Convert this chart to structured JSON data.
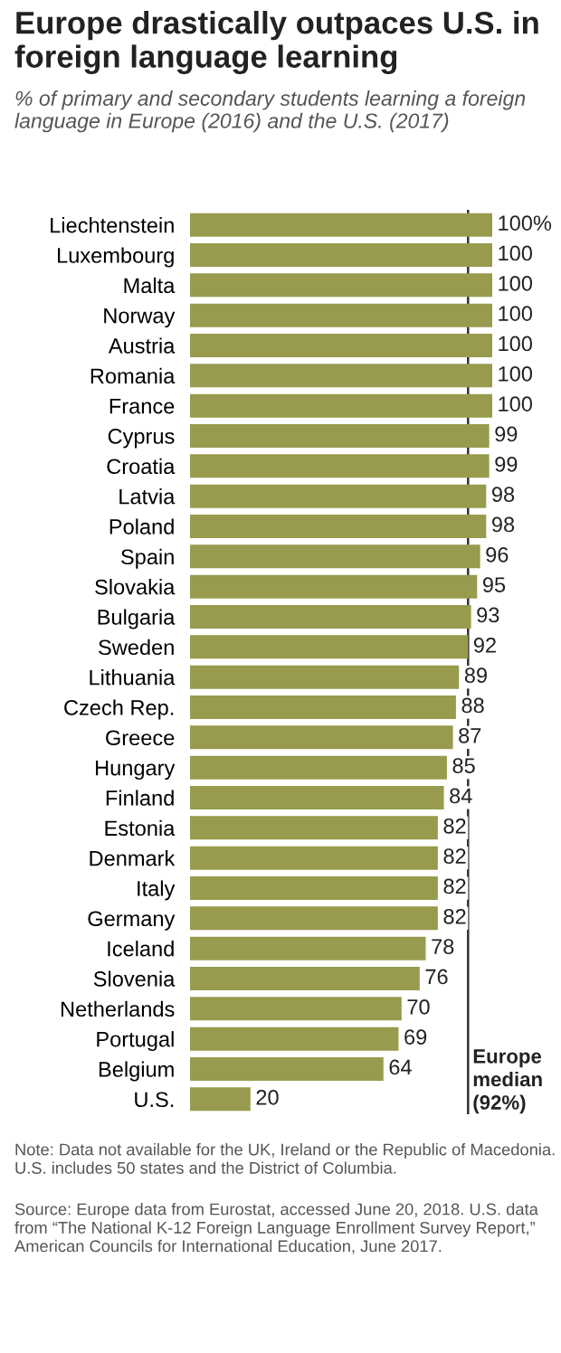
{
  "chart_data": {
    "type": "bar",
    "orientation": "horizontal",
    "title": "Europe drastically outpaces U.S. in foreign language learning",
    "subtitle": "% of primary and secondary students learning a foreign language in Europe (2016) and the U.S. (2017)",
    "categories": [
      "Liechtenstein",
      "Luxembourg",
      "Malta",
      "Norway",
      "Austria",
      "Romania",
      "France",
      "Cyprus",
      "Croatia",
      "Latvia",
      "Poland",
      "Spain",
      "Slovakia",
      "Bulgaria",
      "Sweden",
      "Lithuania",
      "Czech Rep.",
      "Greece",
      "Hungary",
      "Finland",
      "Estonia",
      "Denmark",
      "Italy",
      "Germany",
      "Iceland",
      "Slovenia",
      "Netherlands",
      "Portugal",
      "Belgium",
      "U.S."
    ],
    "values": [
      100,
      100,
      100,
      100,
      100,
      100,
      100,
      99,
      99,
      98,
      98,
      96,
      95,
      93,
      92,
      89,
      88,
      87,
      85,
      84,
      82,
      82,
      82,
      82,
      78,
      76,
      70,
      69,
      64,
      20
    ],
    "value_labels": [
      "100%",
      "100",
      "100",
      "100",
      "100",
      "100",
      "100",
      "99",
      "99",
      "98",
      "98",
      "96",
      "95",
      "93",
      "92",
      "89",
      "88",
      "87",
      "85",
      "84",
      "82",
      "82",
      "82",
      "82",
      "78",
      "76",
      "70",
      "69",
      "64",
      "20"
    ],
    "color": "#989b4e",
    "ref_lines": [
      {
        "axis": "x",
        "value": 92,
        "label": "Europe median (92%)",
        "color": "#333333",
        "line_style": "solid"
      }
    ],
    "annotations": [
      "Note: Data not available for the UK, Ireland or the Republic of Macedonia. U.S. includes 50 states and the District of Columbia.",
      "Source: Europe data from Eurostat, accessed June 20, 2018. U.S. data from “The National K-12 Foreign Language Enrollment Survey Report,” American Councils for International Education, June 2017."
    ],
    "grid": false,
    "legend": false
  }
}
